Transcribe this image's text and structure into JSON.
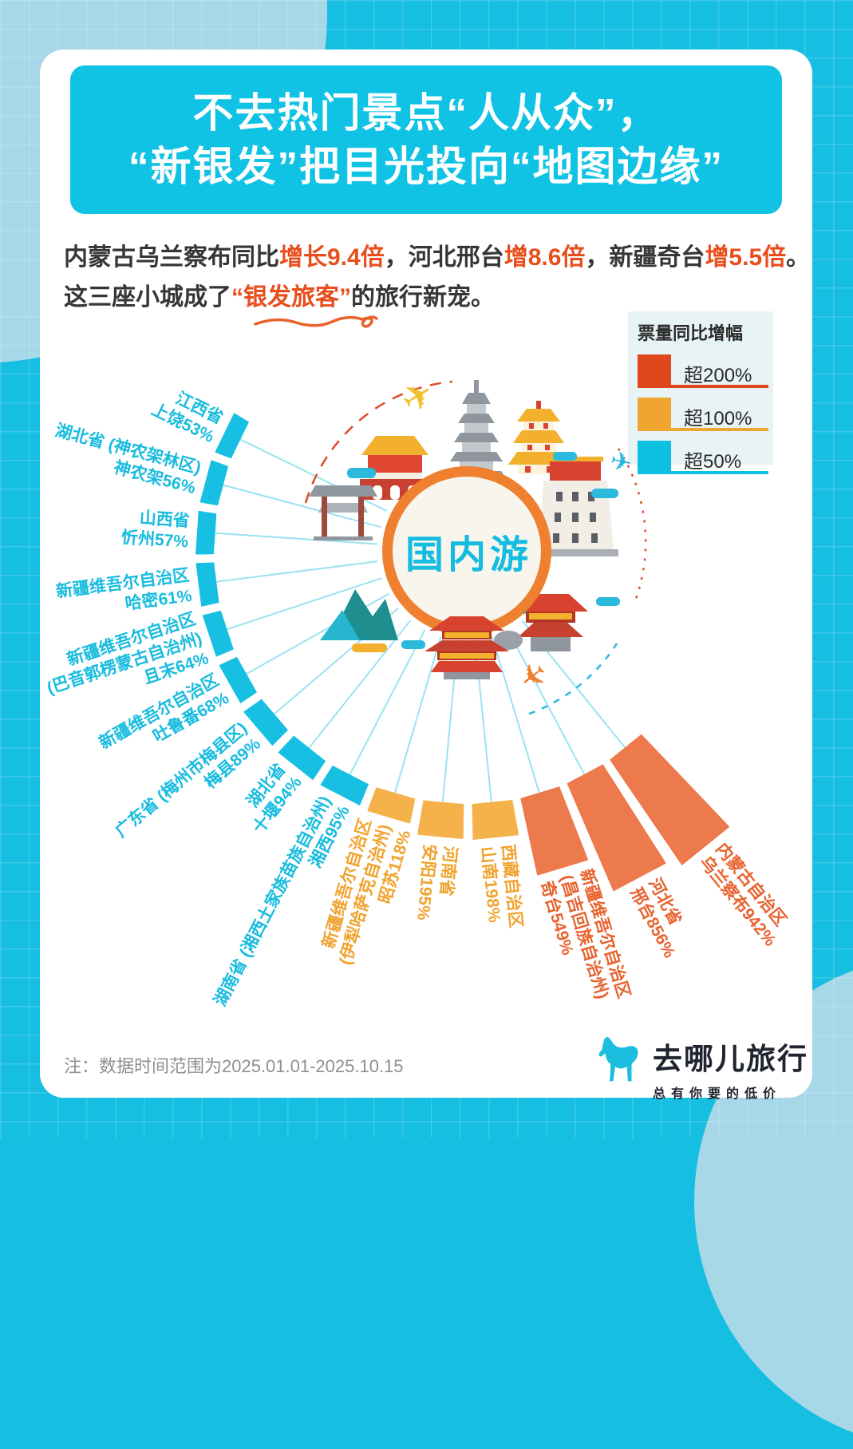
{
  "title": {
    "line1": "不去热门景点“人从众”，",
    "line2": "“新银发”把目光投向“地图边缘”"
  },
  "subtitle": {
    "line1": [
      {
        "text": "内蒙古乌兰察布同比",
        "highlight": false
      },
      {
        "text": "增长9.4倍",
        "highlight": true
      },
      {
        "text": "，河北邢台",
        "highlight": false
      },
      {
        "text": "增8.6倍",
        "highlight": true
      },
      {
        "text": "，新疆奇台",
        "highlight": false
      },
      {
        "text": "增5.5倍",
        "highlight": true
      },
      {
        "text": "。",
        "highlight": false
      }
    ],
    "line2": [
      {
        "text": "这三座小城成了",
        "highlight": false
      },
      {
        "text": "“银发旅客”",
        "highlight": true
      },
      {
        "text": "的旅行新宠。",
        "highlight": false
      }
    ]
  },
  "legend": {
    "title": "票量同比增幅",
    "items": [
      {
        "label": "超200%",
        "color": "#E0481C"
      },
      {
        "label": "超100%",
        "color": "#EFA52F"
      },
      {
        "label": "超50%",
        "color": "#0CC2E0"
      }
    ]
  },
  "center_label": "国内游",
  "palette": {
    "cyan": {
      "bar": "#17C0E3",
      "text": "#18BCDF"
    },
    "yellow": {
      "bar": "#F5B24A",
      "text": "#F0A32E"
    },
    "red": {
      "bar": "#ED7A4C",
      "text": "#E8622E"
    }
  },
  "chart_data": {
    "type": "bar",
    "subtype": "radial",
    "title": "票量同比增幅（国内游）",
    "unit": "%",
    "legend_position": "top-right",
    "categories": [
      "江西省 上饶",
      "湖北省(神农架林区) 神农架",
      "山西省 忻州",
      "新疆维吾尔自治区 哈密",
      "新疆维吾尔自治区(巴音郭楞蒙古自治州) 且末",
      "新疆维吾尔自治区 吐鲁番",
      "广东省(梅州市梅县区) 梅县",
      "湖北省 十堰",
      "湖南省(湘西土家族苗族自治州) 湘西",
      "新疆维吾尔自治区(伊犁哈萨克自治州) 昭苏",
      "河南省 安阳",
      "西藏自治区 山南",
      "新疆维吾尔自治区(昌吉回族自治州) 奇台",
      "河北省 邢台",
      "内蒙古自治区 乌兰察布"
    ],
    "values": [
      53,
      56,
      57,
      61,
      64,
      68,
      89,
      94,
      95,
      118,
      195,
      198,
      549,
      856,
      942
    ],
    "tiers": [
      "cyan",
      "cyan",
      "cyan",
      "cyan",
      "cyan",
      "cyan",
      "cyan",
      "cyan",
      "cyan",
      "yellow",
      "yellow",
      "yellow",
      "red",
      "red",
      "red"
    ],
    "labels": [
      [
        "江西省",
        "上饶53%"
      ],
      [
        "湖北省 (神农架林区)",
        "神农架56%"
      ],
      [
        "山西省",
        "忻州57%"
      ],
      [
        "新疆维吾尔自治区",
        "哈密61%"
      ],
      [
        "新疆维吾尔自治区",
        "(巴音郭楞蒙古自治州)",
        "且末64%"
      ],
      [
        "新疆维吾尔自治区",
        "吐鲁番68%"
      ],
      [
        "广东省 (梅州市梅县区)",
        "梅县89%"
      ],
      [
        "湖北省",
        "十堰94%"
      ],
      [
        "湖南省 (湘西土家族苗族自治州)",
        "湘西95%"
      ],
      [
        "新疆维吾尔自治区",
        "(伊犁哈萨克自治州)",
        "昭苏118%"
      ],
      [
        "河南省",
        "安阳195%"
      ],
      [
        "西藏自治区",
        "山南198%"
      ],
      [
        "新疆维吾尔自治区",
        "(昌吉回族自治州)",
        "奇台549%"
      ],
      [
        "河北省",
        "邢台856%"
      ],
      [
        "内蒙古自治区",
        "乌兰察布942%"
      ]
    ]
  },
  "footer": {
    "note": "注：数据时间范围为2025.01.01-2025.10.15",
    "logo_text": "去哪儿旅行",
    "logo_tagline": "总有你要的低价"
  }
}
